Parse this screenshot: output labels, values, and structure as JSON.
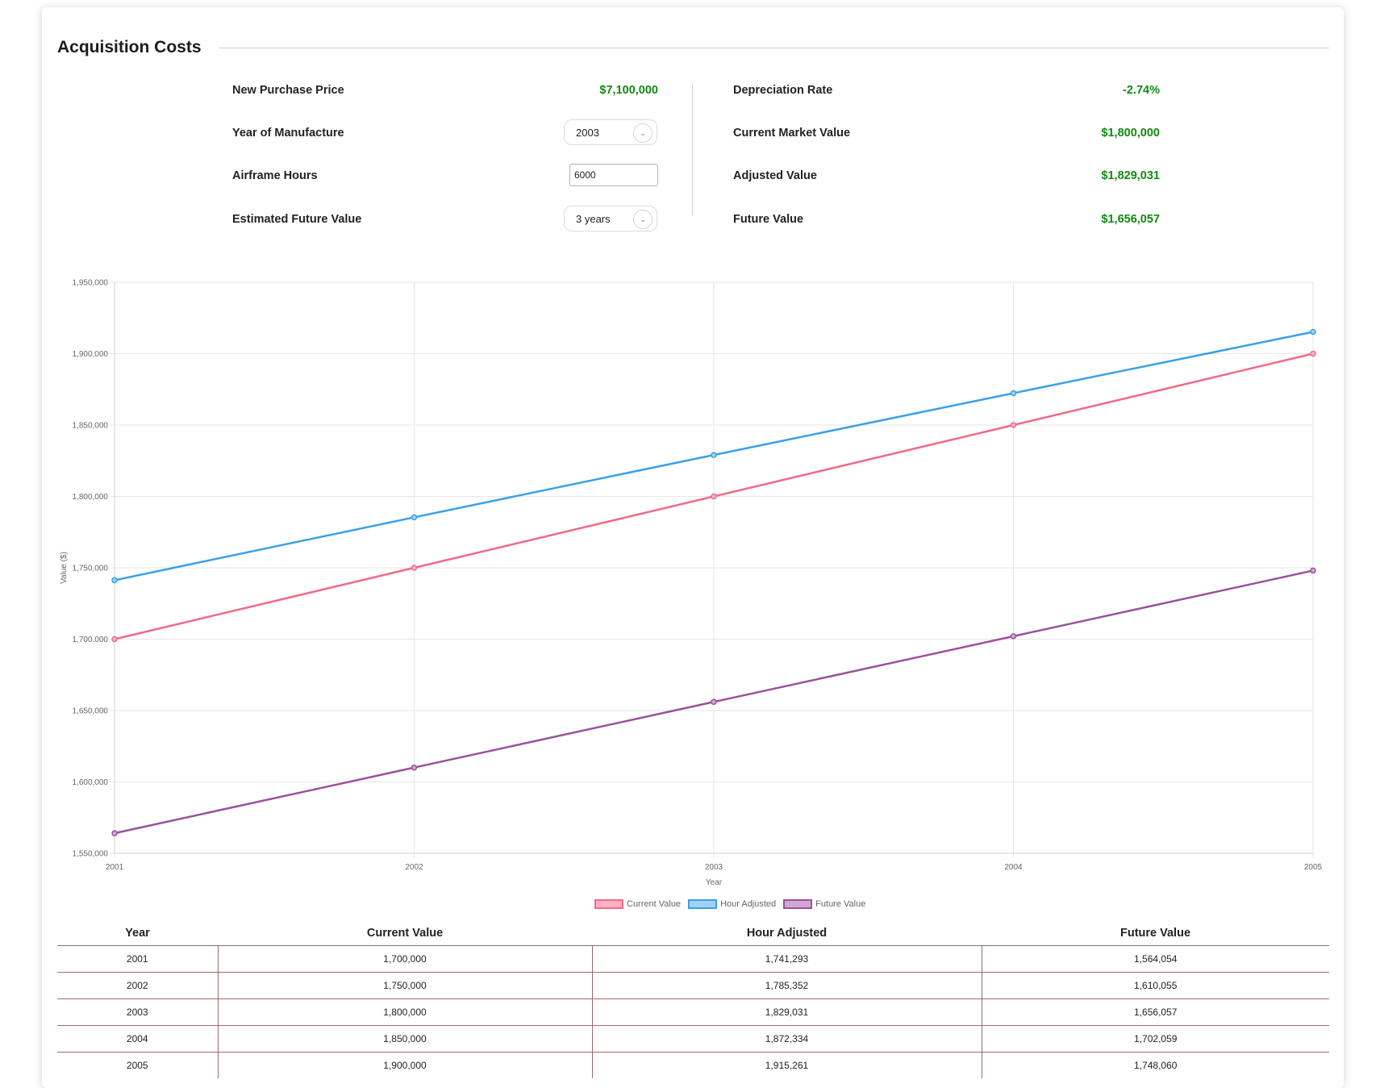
{
  "section": {
    "title": "Acquisition Costs"
  },
  "form": {
    "new_purchase_price": {
      "label": "New Purchase Price",
      "value": "$7,100,000"
    },
    "year_of_manufacture": {
      "label": "Year of Manufacture",
      "selected": "2003"
    },
    "airframe_hours": {
      "label": "Airframe Hours",
      "value": "6000"
    },
    "estimated_future_value": {
      "label": "Estimated Future Value",
      "selected": "3 years"
    },
    "depreciation_rate": {
      "label": "Depreciation Rate",
      "value": "-2.74%"
    },
    "current_market_value": {
      "label": "Current Market Value",
      "value": "$1,800,000"
    },
    "adjusted_value": {
      "label": "Adjusted Value",
      "value": "$1,829,031"
    },
    "future_value": {
      "label": "Future Value",
      "value": "$1,656,057"
    },
    "value_color": "#118a11"
  },
  "chart_data": {
    "type": "line",
    "x": [
      2001,
      2002,
      2003,
      2004,
      2005
    ],
    "xlabel": "Year",
    "ylabel": "Value ($)",
    "ylim": [
      1550000,
      1950000
    ],
    "yticks": [
      1550000,
      1600000,
      1650000,
      1700000,
      1750000,
      1800000,
      1850000,
      1900000,
      1950000
    ],
    "yticklabels": [
      "1,550,000",
      "1,600,000",
      "1,650,000",
      "1,700,000",
      "1,750,000",
      "1,800,000",
      "1,850,000",
      "1,900,000",
      "1,950,000"
    ],
    "grid": true,
    "legend_position": "bottom",
    "series": [
      {
        "name": "Current Value",
        "color": "#f06b8b",
        "fill": "#ffb3c4",
        "values": [
          1700000,
          1750000,
          1800000,
          1850000,
          1900000
        ]
      },
      {
        "name": "Hour Adjusted",
        "color": "#3ba0e6",
        "fill": "#9fd3f5",
        "values": [
          1741293,
          1785352,
          1829031,
          1872334,
          1915261
        ]
      },
      {
        "name": "Future Value",
        "color": "#9b519b",
        "fill": "#d2a7d2",
        "values": [
          1564054,
          1610055,
          1656057,
          1702059,
          1748060
        ]
      }
    ]
  },
  "table": {
    "headers": [
      "Year",
      "Current Value",
      "Hour Adjusted",
      "Future Value"
    ],
    "rows": [
      [
        "2001",
        "1,700,000",
        "1,741,293",
        "1,564,054"
      ],
      [
        "2002",
        "1,750,000",
        "1,785,352",
        "1,610,055"
      ],
      [
        "2003",
        "1,800,000",
        "1,829,031",
        "1,656,057"
      ],
      [
        "2004",
        "1,850,000",
        "1,872,334",
        "1,702,059"
      ],
      [
        "2005",
        "1,900,000",
        "1,915,261",
        "1,748,060"
      ]
    ]
  }
}
